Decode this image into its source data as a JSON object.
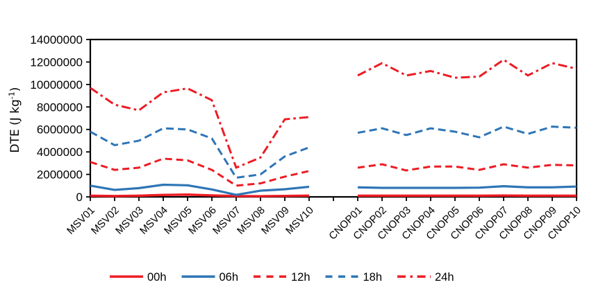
{
  "chart_data": {
    "type": "line",
    "title": "",
    "ylabel_parts": {
      "main": "DTE (J kg",
      "sup": "-1",
      "close": ")"
    },
    "xlabel": "",
    "ylim": [
      0,
      14000000
    ],
    "ytick_step": 2000000,
    "grid": false,
    "legend_position": "bottom",
    "axis_color": "#000000",
    "categories": [
      "MSV01",
      "MSV02",
      "MSV03",
      "MSV04",
      "MSV05",
      "MSV06",
      "MSV07",
      "MSV08",
      "MSV09",
      "MSV10",
      "",
      "CNOP01",
      "CNOP02",
      "CNOP03",
      "CNOP04",
      "CNOP05",
      "CNOP06",
      "CNOP07",
      "CNOP08",
      "CNOP09",
      "CNOP10"
    ],
    "series": [
      {
        "name": "00h",
        "color": "#ed1c24",
        "style": "solid",
        "width": 3.4,
        "dash": "",
        "legend_dash": "",
        "values": [
          100000,
          70000,
          100000,
          170000,
          200000,
          130000,
          70000,
          60000,
          80000,
          110000,
          null,
          100000,
          100000,
          100000,
          100000,
          100000,
          100000,
          120000,
          100000,
          100000,
          100000
        ]
      },
      {
        "name": "06h",
        "color": "#2e75b6",
        "style": "solid",
        "width": 3.2,
        "dash": "",
        "legend_dash": "",
        "values": [
          1000000,
          620000,
          780000,
          1080000,
          1030000,
          660000,
          180000,
          550000,
          680000,
          900000,
          null,
          850000,
          800000,
          800000,
          800000,
          800000,
          820000,
          950000,
          850000,
          850000,
          920000
        ]
      },
      {
        "name": "12h",
        "color": "#ed1c24",
        "style": "dashed",
        "width": 3,
        "dash": "10 6",
        "legend_dash": "10 8.5",
        "values": [
          3100000,
          2400000,
          2600000,
          3400000,
          3250000,
          2400000,
          1000000,
          1200000,
          1800000,
          2300000,
          null,
          2600000,
          2900000,
          2350000,
          2700000,
          2700000,
          2400000,
          2900000,
          2600000,
          2850000,
          2800000
        ]
      },
      {
        "name": "18h",
        "color": "#2e75b6",
        "style": "dashed",
        "width": 3,
        "dash": "11 6",
        "legend_dash": "10 8.5",
        "values": [
          5800000,
          4600000,
          5000000,
          6100000,
          6000000,
          5200000,
          1700000,
          2000000,
          3600000,
          4400000,
          null,
          5700000,
          6100000,
          5500000,
          6100000,
          5800000,
          5300000,
          6250000,
          5600000,
          6250000,
          6150000
        ]
      },
      {
        "name": "24h",
        "color": "#ed1c24",
        "style": "dash-dot",
        "width": 3,
        "dash": "13 5 3.5 5",
        "legend_dash": "12 6.5 3.5 6.5",
        "values": [
          9700000,
          8200000,
          7700000,
          9300000,
          9650000,
          8600000,
          2600000,
          3500000,
          6900000,
          7100000,
          null,
          10800000,
          11900000,
          10800000,
          11200000,
          10600000,
          10700000,
          12200000,
          10800000,
          11900000,
          11400000
        ]
      }
    ],
    "legend_entries": [
      "00h",
      "06h",
      "12h",
      "18h",
      "24h"
    ]
  }
}
